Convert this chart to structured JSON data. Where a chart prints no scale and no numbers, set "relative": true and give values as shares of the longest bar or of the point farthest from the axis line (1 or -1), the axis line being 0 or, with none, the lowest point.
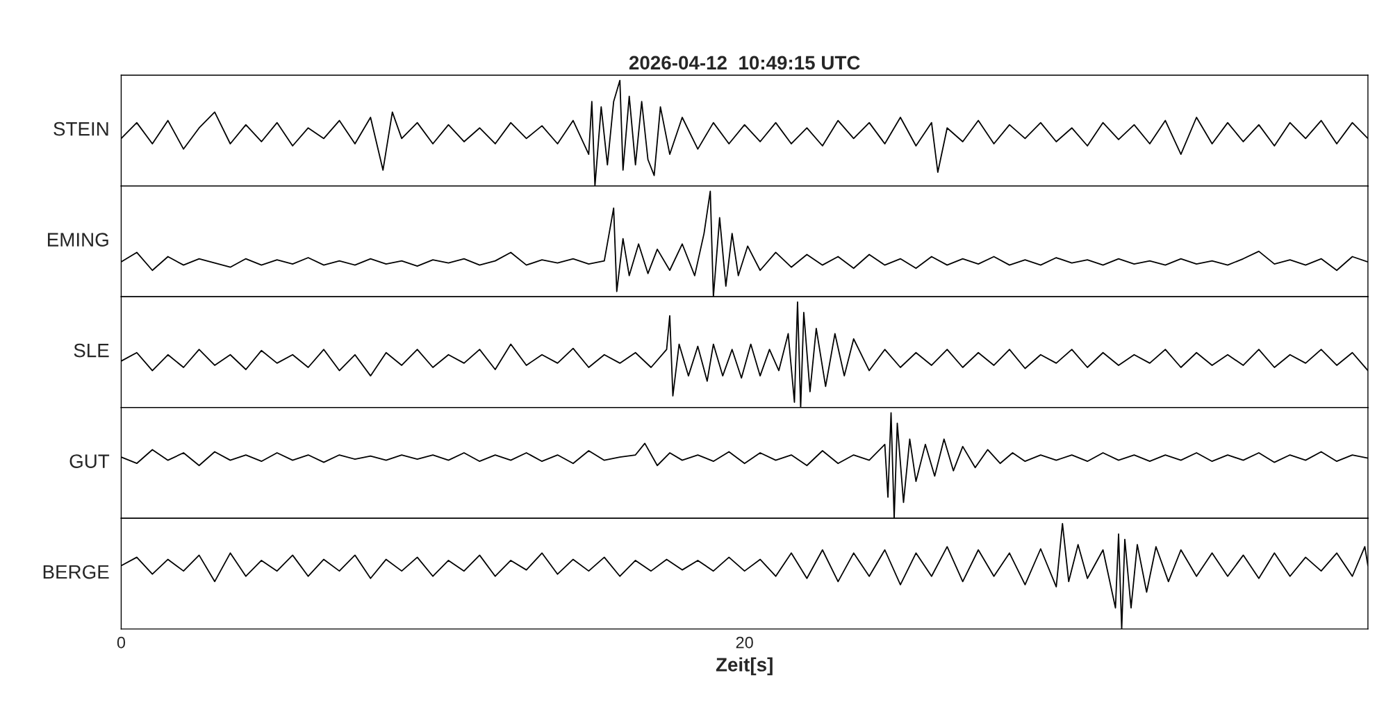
{
  "chart_data": [
    {
      "type": "line",
      "title": "2026-04-12  10:49:15 UTC",
      "ylabel": "STEIN",
      "relative": true,
      "xlim": [
        0,
        40
      ],
      "xticks": [
        0,
        20
      ],
      "tick_labels": false,
      "series": [
        {
          "color": "#000000",
          "x": [
            0,
            0.5,
            1,
            1.5,
            2,
            2.5,
            3,
            3.5,
            4,
            4.5,
            5,
            5.5,
            6,
            6.5,
            7,
            7.5,
            8,
            8.4,
            8.7,
            9,
            9.5,
            10,
            10.5,
            11,
            11.5,
            12,
            12.5,
            13,
            13.5,
            14,
            14.5,
            15,
            15.1,
            15.2,
            15.4,
            15.6,
            15.8,
            16.0,
            16.1,
            16.3,
            16.5,
            16.7,
            16.9,
            17.1,
            17.3,
            17.6,
            18,
            18.5,
            19,
            19.5,
            20,
            20.5,
            21,
            21.5,
            22,
            22.5,
            23,
            23.5,
            24,
            24.5,
            25,
            25.5,
            26,
            26.2,
            26.5,
            27,
            27.5,
            28,
            28.5,
            29,
            29.5,
            30,
            30.5,
            31,
            31.5,
            32,
            32.5,
            33,
            33.5,
            34,
            34.5,
            35,
            35.5,
            36,
            36.5,
            37,
            37.5,
            38,
            38.5,
            39,
            39.5,
            40
          ],
          "values": [
            0.45,
            0.6,
            0.4,
            0.62,
            0.35,
            0.55,
            0.7,
            0.4,
            0.58,
            0.42,
            0.6,
            0.38,
            0.55,
            0.45,
            0.62,
            0.4,
            0.65,
            0.15,
            0.7,
            0.45,
            0.6,
            0.4,
            0.58,
            0.42,
            0.55,
            0.4,
            0.6,
            0.45,
            0.57,
            0.4,
            0.62,
            0.3,
            0.8,
            0.0,
            0.75,
            0.2,
            0.8,
            1.0,
            0.15,
            0.85,
            0.2,
            0.8,
            0.25,
            0.1,
            0.75,
            0.3,
            0.65,
            0.35,
            0.6,
            0.4,
            0.58,
            0.42,
            0.6,
            0.4,
            0.55,
            0.38,
            0.62,
            0.45,
            0.6,
            0.4,
            0.65,
            0.38,
            0.6,
            0.13,
            0.55,
            0.42,
            0.62,
            0.4,
            0.58,
            0.45,
            0.6,
            0.42,
            0.55,
            0.38,
            0.6,
            0.44,
            0.58,
            0.4,
            0.62,
            0.3,
            0.65,
            0.4,
            0.6,
            0.42,
            0.58,
            0.38,
            0.6,
            0.45,
            0.62,
            0.4,
            0.6,
            0.45
          ]
        }
      ]
    },
    {
      "type": "line",
      "ylabel": "EMING",
      "relative": true,
      "xlim": [
        0,
        40
      ],
      "xticks": [
        0,
        20
      ],
      "tick_labels": false,
      "series": [
        {
          "color": "#000000",
          "x": [
            0,
            0.5,
            1,
            1.5,
            2,
            2.5,
            3,
            3.5,
            4,
            4.5,
            5,
            5.5,
            6,
            6.5,
            7,
            7.5,
            8,
            8.5,
            9,
            9.5,
            10,
            10.5,
            11,
            11.5,
            12,
            12.5,
            13,
            13.5,
            14,
            14.5,
            15,
            15.5,
            15.8,
            15.9,
            16.1,
            16.3,
            16.6,
            16.9,
            17.2,
            17.6,
            18,
            18.4,
            18.7,
            18.9,
            19.0,
            19.2,
            19.4,
            19.6,
            19.8,
            20.1,
            20.5,
            21,
            21.5,
            22,
            22.5,
            23,
            23.5,
            24,
            24.5,
            25,
            25.5,
            26,
            26.5,
            27,
            27.5,
            28,
            28.5,
            29,
            29.5,
            30,
            30.5,
            31,
            31.5,
            32,
            32.5,
            33,
            33.5,
            34,
            34.5,
            35,
            35.5,
            36,
            36.5,
            37,
            37.5,
            38,
            38.5,
            39,
            39.5,
            40
          ],
          "values": [
            0.33,
            0.42,
            0.25,
            0.38,
            0.3,
            0.36,
            0.32,
            0.28,
            0.36,
            0.3,
            0.35,
            0.31,
            0.37,
            0.3,
            0.34,
            0.3,
            0.36,
            0.31,
            0.34,
            0.29,
            0.35,
            0.32,
            0.36,
            0.3,
            0.34,
            0.42,
            0.3,
            0.35,
            0.32,
            0.36,
            0.31,
            0.34,
            0.84,
            0.05,
            0.55,
            0.2,
            0.5,
            0.22,
            0.45,
            0.25,
            0.5,
            0.2,
            0.6,
            1.0,
            0.0,
            0.75,
            0.1,
            0.6,
            0.2,
            0.48,
            0.25,
            0.42,
            0.28,
            0.4,
            0.3,
            0.38,
            0.27,
            0.4,
            0.3,
            0.36,
            0.27,
            0.38,
            0.3,
            0.36,
            0.31,
            0.38,
            0.3,
            0.35,
            0.3,
            0.37,
            0.32,
            0.35,
            0.3,
            0.36,
            0.31,
            0.34,
            0.3,
            0.36,
            0.31,
            0.34,
            0.3,
            0.36,
            0.43,
            0.31,
            0.35,
            0.3,
            0.36,
            0.25,
            0.38,
            0.33
          ]
        }
      ]
    },
    {
      "type": "line",
      "ylabel": "SLE",
      "relative": true,
      "xlim": [
        0,
        40
      ],
      "xticks": [
        0,
        20
      ],
      "tick_labels": false,
      "series": [
        {
          "color": "#000000",
          "x": [
            0,
            0.5,
            1,
            1.5,
            2,
            2.5,
            3,
            3.5,
            4,
            4.5,
            5,
            5.5,
            6,
            6.5,
            7,
            7.5,
            8,
            8.5,
            9,
            9.5,
            10,
            10.5,
            11,
            11.5,
            12,
            12.5,
            13,
            13.5,
            14,
            14.5,
            15,
            15.5,
            16,
            16.5,
            17,
            17.5,
            17.6,
            17.7,
            17.9,
            18.2,
            18.5,
            18.8,
            19,
            19.3,
            19.6,
            19.9,
            20.2,
            20.5,
            20.8,
            21.1,
            21.4,
            21.6,
            21.7,
            21.8,
            21.9,
            22.1,
            22.3,
            22.6,
            22.9,
            23.2,
            23.5,
            24,
            24.5,
            25,
            25.5,
            26,
            26.5,
            27,
            27.5,
            28,
            28.5,
            29,
            29.5,
            30,
            30.5,
            31,
            31.5,
            32,
            32.5,
            33,
            33.5,
            34,
            34.5,
            35,
            35.5,
            36,
            36.5,
            37,
            37.5,
            38,
            38.5,
            39,
            39.5,
            40
          ],
          "values": [
            0.44,
            0.52,
            0.35,
            0.5,
            0.38,
            0.55,
            0.4,
            0.5,
            0.36,
            0.54,
            0.42,
            0.5,
            0.38,
            0.55,
            0.35,
            0.5,
            0.3,
            0.52,
            0.4,
            0.55,
            0.38,
            0.5,
            0.42,
            0.55,
            0.36,
            0.6,
            0.4,
            0.5,
            0.42,
            0.56,
            0.38,
            0.5,
            0.42,
            0.52,
            0.38,
            0.55,
            0.87,
            0.11,
            0.6,
            0.3,
            0.58,
            0.25,
            0.6,
            0.3,
            0.55,
            0.28,
            0.6,
            0.3,
            0.55,
            0.35,
            0.7,
            0.05,
            1.0,
            0.0,
            0.9,
            0.15,
            0.75,
            0.2,
            0.7,
            0.3,
            0.65,
            0.35,
            0.55,
            0.38,
            0.52,
            0.4,
            0.55,
            0.38,
            0.52,
            0.4,
            0.55,
            0.37,
            0.5,
            0.42,
            0.55,
            0.38,
            0.52,
            0.4,
            0.5,
            0.42,
            0.55,
            0.38,
            0.52,
            0.4,
            0.5,
            0.4,
            0.55,
            0.38,
            0.5,
            0.42,
            0.55,
            0.4,
            0.52,
            0.35
          ]
        }
      ]
    },
    {
      "type": "line",
      "ylabel": "GUT",
      "relative": true,
      "xlim": [
        0,
        40
      ],
      "xticks": [
        0,
        20
      ],
      "tick_labels": false,
      "series": [
        {
          "color": "#000000",
          "x": [
            0,
            0.5,
            1,
            1.5,
            2,
            2.5,
            3,
            3.5,
            4,
            4.5,
            5,
            5.5,
            6,
            6.5,
            7,
            7.5,
            8,
            8.5,
            9,
            9.5,
            10,
            10.5,
            11,
            11.5,
            12,
            12.5,
            13,
            13.5,
            14,
            14.5,
            15,
            15.5,
            16,
            16.5,
            16.8,
            17.2,
            17.6,
            18,
            18.5,
            19,
            19.5,
            20,
            20.5,
            21,
            21.5,
            22,
            22.5,
            23,
            23.5,
            24,
            24.5,
            24.6,
            24.7,
            24.8,
            24.9,
            25.1,
            25.3,
            25.5,
            25.8,
            26.1,
            26.4,
            26.7,
            27,
            27.4,
            27.8,
            28.2,
            28.6,
            29,
            29.5,
            30,
            30.5,
            31,
            31.5,
            32,
            32.5,
            33,
            33.5,
            34,
            34.5,
            35,
            35.5,
            36,
            36.5,
            37,
            37.5,
            38,
            38.5,
            39,
            39.5,
            40
          ],
          "values": [
            0.58,
            0.52,
            0.65,
            0.55,
            0.62,
            0.5,
            0.63,
            0.55,
            0.6,
            0.54,
            0.62,
            0.55,
            0.6,
            0.53,
            0.6,
            0.56,
            0.59,
            0.55,
            0.6,
            0.56,
            0.6,
            0.55,
            0.62,
            0.54,
            0.6,
            0.55,
            0.62,
            0.54,
            0.6,
            0.52,
            0.64,
            0.55,
            0.58,
            0.6,
            0.71,
            0.5,
            0.62,
            0.55,
            0.6,
            0.54,
            0.63,
            0.52,
            0.62,
            0.55,
            0.6,
            0.5,
            0.64,
            0.52,
            0.6,
            0.55,
            0.7,
            0.2,
            1.0,
            0.0,
            0.9,
            0.15,
            0.75,
            0.35,
            0.7,
            0.4,
            0.75,
            0.45,
            0.68,
            0.48,
            0.65,
            0.52,
            0.62,
            0.54,
            0.6,
            0.55,
            0.6,
            0.54,
            0.62,
            0.55,
            0.6,
            0.54,
            0.6,
            0.55,
            0.62,
            0.54,
            0.6,
            0.55,
            0.62,
            0.53,
            0.6,
            0.55,
            0.63,
            0.54,
            0.6,
            0.57
          ]
        }
      ]
    },
    {
      "type": "line",
      "ylabel": "BERGE",
      "xlabel": "Zeit[s]",
      "relative": true,
      "xlim": [
        0,
        40
      ],
      "xticks": [
        0,
        20
      ],
      "tick_labels": "x",
      "series": [
        {
          "color": "#000000",
          "x": [
            0,
            0.5,
            1,
            1.5,
            2,
            2.5,
            3,
            3.5,
            4,
            4.5,
            5,
            5.5,
            6,
            6.5,
            7,
            7.5,
            8,
            8.5,
            9,
            9.5,
            10,
            10.5,
            11,
            11.5,
            12,
            12.5,
            13,
            13.5,
            14,
            14.5,
            15,
            15.5,
            16,
            16.5,
            17,
            17.5,
            18,
            18.5,
            19,
            19.5,
            20,
            20.5,
            21,
            21.5,
            22,
            22.5,
            23,
            23.5,
            24,
            24.5,
            25,
            25.5,
            26,
            26.5,
            27,
            27.5,
            28,
            28.5,
            29,
            29.5,
            30,
            30.2,
            30.4,
            30.7,
            31,
            31.5,
            31.9,
            32.0,
            32.1,
            32.2,
            32.4,
            32.6,
            32.9,
            33.2,
            33.6,
            34,
            34.5,
            35,
            35.5,
            36,
            36.5,
            37,
            37.5,
            38,
            38.5,
            39,
            39.5,
            39.9,
            40
          ],
          "values": [
            0.6,
            0.68,
            0.52,
            0.66,
            0.55,
            0.7,
            0.45,
            0.72,
            0.5,
            0.65,
            0.55,
            0.7,
            0.5,
            0.66,
            0.55,
            0.7,
            0.48,
            0.66,
            0.55,
            0.68,
            0.5,
            0.65,
            0.55,
            0.7,
            0.5,
            0.65,
            0.56,
            0.72,
            0.52,
            0.66,
            0.55,
            0.68,
            0.5,
            0.65,
            0.55,
            0.66,
            0.56,
            0.65,
            0.55,
            0.68,
            0.55,
            0.66,
            0.5,
            0.72,
            0.48,
            0.75,
            0.45,
            0.72,
            0.5,
            0.75,
            0.42,
            0.72,
            0.5,
            0.78,
            0.45,
            0.75,
            0.5,
            0.72,
            0.42,
            0.76,
            0.4,
            1.0,
            0.45,
            0.8,
            0.48,
            0.75,
            0.2,
            0.9,
            0.0,
            0.85,
            0.2,
            0.8,
            0.35,
            0.78,
            0.45,
            0.75,
            0.5,
            0.72,
            0.5,
            0.7,
            0.48,
            0.72,
            0.5,
            0.68,
            0.55,
            0.72,
            0.5,
            0.78,
            0.6
          ]
        }
      ]
    }
  ]
}
